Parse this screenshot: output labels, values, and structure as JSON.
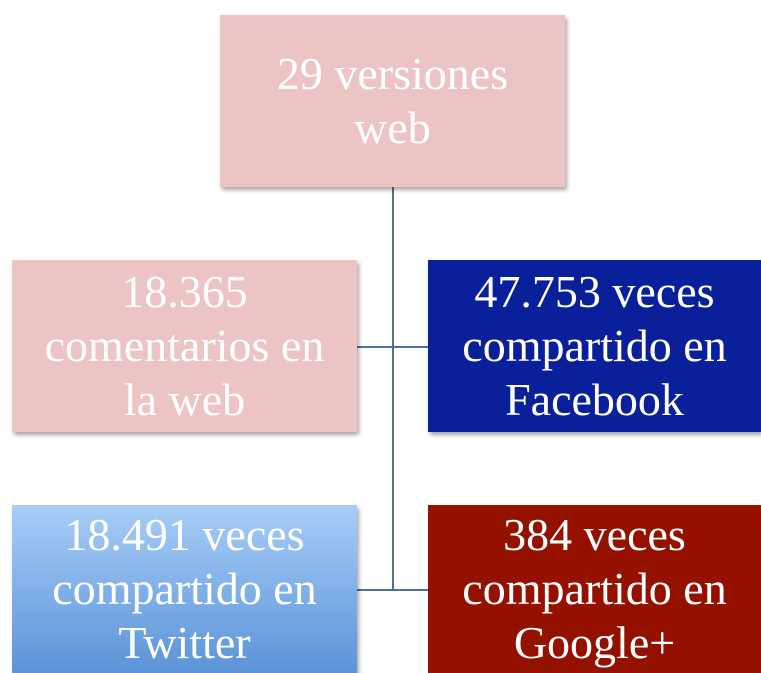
{
  "nodes": [
    {
      "lines": [
        "29 versiones",
        "web"
      ]
    },
    {
      "lines": [
        "18.365",
        "comentarios en",
        "la web"
      ]
    },
    {
      "lines": [
        "47.753 veces",
        "compartido en",
        "Facebook"
      ]
    },
    {
      "lines": [
        "18.491 veces",
        "compartido en",
        "Twitter"
      ]
    },
    {
      "lines": [
        "384 veces",
        "compartido en",
        "Google+"
      ]
    }
  ]
}
